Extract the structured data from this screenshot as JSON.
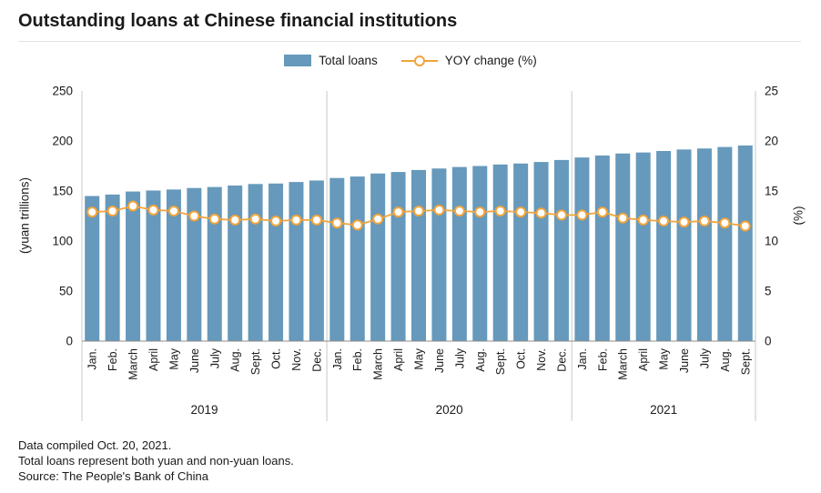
{
  "title": "Outstanding loans at Chinese financial institutions",
  "legend": {
    "bars": "Total loans",
    "line": "YOY change (%)"
  },
  "colors": {
    "bar": "#6699bb",
    "line": "#f2a43c"
  },
  "axes": {
    "left_label": "(yuan trillions)",
    "right_label": "(%)"
  },
  "footnotes": [
    "Data compiled Oct. 20, 2021.",
    "Total loans represent both yuan and non-yuan loans.",
    "Source: The People's Bank of China"
  ],
  "chart_data": {
    "type": "bar",
    "title": "Outstanding loans at Chinese financial institutions",
    "categories": [
      "Jan.",
      "Feb.",
      "March",
      "April",
      "May",
      "June",
      "July",
      "Aug.",
      "Sept.",
      "Oct.",
      "Nov.",
      "Dec.",
      "Jan.",
      "Feb.",
      "March",
      "April",
      "May",
      "June",
      "July",
      "Aug.",
      "Sept.",
      "Oct.",
      "Nov.",
      "Dec.",
      "Jan.",
      "Feb.",
      "March",
      "April",
      "May",
      "June",
      "July",
      "Aug.",
      "Sept."
    ],
    "year_groups": [
      {
        "label": "2019",
        "count": 12
      },
      {
        "label": "2020",
        "count": 12
      },
      {
        "label": "2021",
        "count": 9
      }
    ],
    "series": [
      {
        "name": "Total loans",
        "type": "bar",
        "axis": "left",
        "unit": "yuan trillions",
        "values": [
          145,
          146.5,
          149.5,
          150.5,
          151.5,
          153,
          154,
          155.5,
          157,
          157.5,
          159,
          160.5,
          163,
          164.5,
          167.5,
          169,
          171,
          172.5,
          174,
          175,
          176.5,
          177.5,
          179,
          181,
          183.5,
          185.5,
          187.5,
          188.5,
          190,
          191.5,
          192.5,
          194,
          195.5
        ]
      },
      {
        "name": "YOY change (%)",
        "type": "line",
        "axis": "right",
        "unit": "%",
        "values": [
          12.9,
          13.0,
          13.5,
          13.1,
          13.0,
          12.5,
          12.2,
          12.1,
          12.2,
          12.0,
          12.1,
          12.1,
          11.8,
          11.6,
          12.2,
          12.9,
          13.0,
          13.1,
          13.0,
          12.9,
          13.0,
          12.9,
          12.8,
          12.6,
          12.6,
          12.9,
          12.3,
          12.1,
          12.0,
          11.9,
          12.0,
          11.8,
          11.5
        ]
      }
    ],
    "left_axis": {
      "label": "(yuan trillions)",
      "min": 0,
      "max": 250,
      "ticks": [
        0,
        50,
        100,
        150,
        200,
        250
      ]
    },
    "right_axis": {
      "label": "(%)",
      "min": 0,
      "max": 25,
      "ticks": [
        0,
        5,
        10,
        15,
        20,
        25
      ]
    },
    "grid": false,
    "legend_position": "top-center"
  }
}
